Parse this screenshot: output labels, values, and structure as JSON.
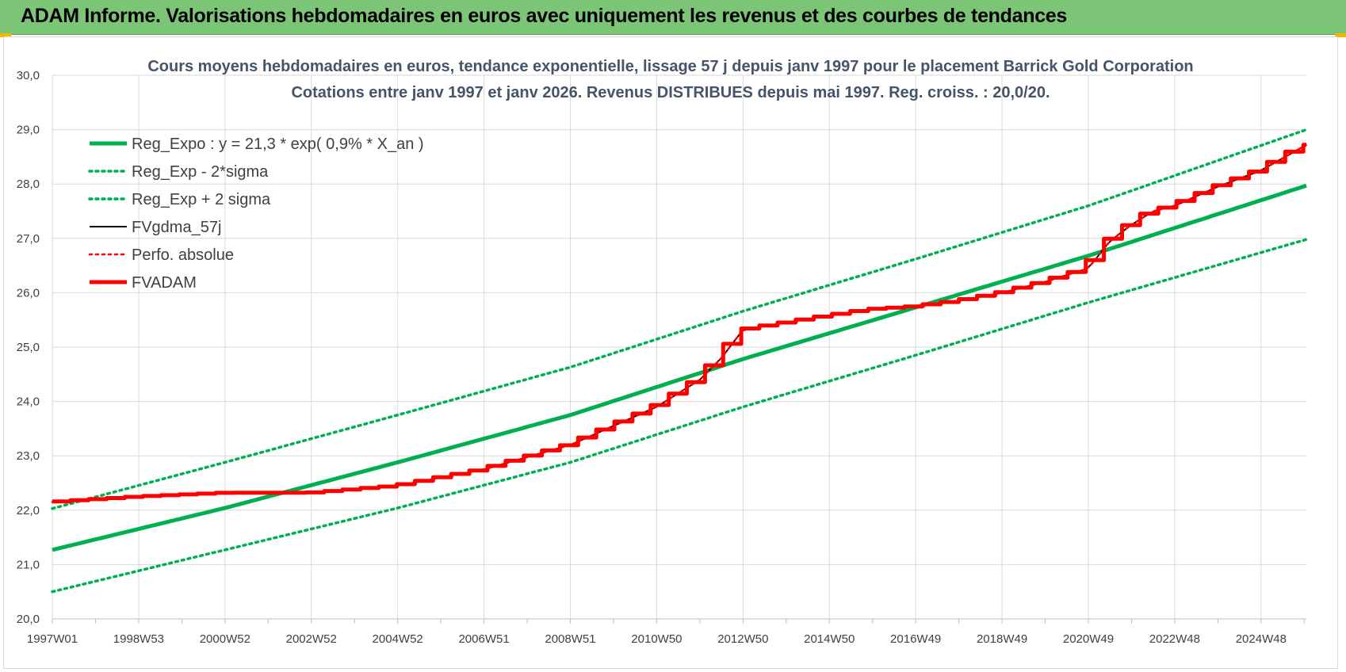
{
  "banner": {
    "title": "ADAM Informe. Valorisations hebdomadaires en euros avec uniquement les revenus et des courbes de tendances",
    "color": "#7cc576"
  },
  "chart_data": {
    "type": "line",
    "title_lines": [
      "Cours moyens hebdomadaires en euros, tendance exponentielle, lissage 57 j depuis janv 1997  pour le placement Barrick Gold Corporation",
      "Cotations entre janv 1997 et janv 2026. Revenus DISTRIBUES depuis mai 1997.  Reg. croiss. : 20,0/20."
    ],
    "xlabel": "",
    "ylabel": "",
    "ylim": [
      20,
      30
    ],
    "yticks": [
      "20,0",
      "21,0",
      "22,0",
      "23,0",
      "24,0",
      "25,0",
      "26,0",
      "27,0",
      "28,0",
      "29,0",
      "30,0"
    ],
    "xlim": [
      1997.0,
      2026.05
    ],
    "xtick_labels": [
      "1997W01",
      "1998W53",
      "2000W52",
      "2002W52",
      "2004W52",
      "2006W51",
      "2008W51",
      "2010W50",
      "2012W50",
      "2014W50",
      "2016W49",
      "2018W49",
      "2020W49",
      "2022W48",
      "2024W48"
    ],
    "xtick_years": [
      1997.0,
      1999.0,
      2001.0,
      2003.0,
      2005.0,
      2007.0,
      2009.0,
      2011.0,
      2013.0,
      2015.0,
      2017.0,
      2019.0,
      2021.0,
      2023.0,
      2025.0
    ],
    "grid": true,
    "legend_position": "top-left",
    "series": [
      {
        "name": "Reg_Expo : y = 21,3 * exp( 0,9% *  X_an )",
        "style": "solid",
        "color": "#00b050",
        "width": 5,
        "x": [
          1997.0,
          2001.0,
          2005.0,
          2009.0,
          2013.0,
          2017.0,
          2021.0,
          2026.05
        ],
        "y": [
          21.27,
          22.04,
          22.88,
          23.75,
          24.78,
          25.73,
          26.68,
          27.97
        ]
      },
      {
        "name": "Reg_Exp - 2*sigma",
        "style": "dotted",
        "color": "#00b050",
        "width": 3.5,
        "x": [
          1997.0,
          2001.0,
          2005.0,
          2009.0,
          2013.0,
          2017.0,
          2021.0,
          2026.05
        ],
        "y": [
          20.5,
          21.27,
          22.04,
          22.88,
          23.9,
          24.85,
          25.82,
          26.98
        ]
      },
      {
        "name": "Reg_Exp + 2 sigma",
        "style": "dotted",
        "color": "#00b050",
        "width": 3.5,
        "x": [
          1997.0,
          2001.0,
          2005.0,
          2009.0,
          2013.0,
          2017.0,
          2021.0,
          2026.05
        ],
        "y": [
          22.03,
          22.88,
          23.75,
          24.63,
          25.66,
          26.62,
          27.6,
          29.0
        ]
      },
      {
        "name": "FVgdma_57j",
        "style": "solid",
        "color": "#000000",
        "width": 2,
        "x": [
          1997.0,
          1999.0,
          2001.0,
          2003.0,
          2005.0,
          2007.0,
          2009.0,
          2011.0,
          2012.0,
          2012.5,
          2013.0,
          2014.0,
          2015.0,
          2016.0,
          2017.0,
          2018.0,
          2019.0,
          2020.0,
          2021.0,
          2021.5,
          2022.0,
          2022.5,
          2023.0,
          2024.0,
          2025.0,
          2026.05
        ],
        "y": [
          22.15,
          22.25,
          22.32,
          22.32,
          22.45,
          22.75,
          23.2,
          23.9,
          24.4,
          24.8,
          25.32,
          25.45,
          25.58,
          25.7,
          25.75,
          25.85,
          26.0,
          26.2,
          26.45,
          26.95,
          27.25,
          27.5,
          27.6,
          27.95,
          28.25,
          28.72
        ]
      },
      {
        "name": "Perfo. absolue",
        "style": "dotted",
        "color": "#ff0000",
        "width": 2.5,
        "x": [
          1997.0,
          1999.0,
          2001.0,
          2003.0,
          2005.0,
          2007.0,
          2009.0,
          2011.0,
          2012.0,
          2012.5,
          2013.0,
          2014.0,
          2015.0,
          2016.0,
          2017.0,
          2018.0,
          2019.0,
          2020.0,
          2021.0,
          2021.5,
          2022.0,
          2022.5,
          2023.0,
          2024.0,
          2025.0,
          2026.05
        ],
        "y": [
          22.15,
          22.25,
          22.32,
          22.32,
          22.45,
          22.75,
          23.2,
          23.9,
          24.4,
          24.8,
          25.32,
          25.45,
          25.58,
          25.7,
          25.75,
          25.85,
          26.0,
          26.2,
          26.45,
          26.95,
          27.25,
          27.5,
          27.6,
          27.95,
          28.25,
          28.72
        ]
      },
      {
        "name": "FVADAM",
        "style": "steps",
        "color": "#ff0000",
        "width": 5,
        "x": [
          1997.0,
          1999.0,
          2001.0,
          2003.0,
          2005.0,
          2007.0,
          2009.0,
          2011.0,
          2012.0,
          2012.5,
          2013.0,
          2014.0,
          2015.0,
          2016.0,
          2017.0,
          2018.0,
          2019.0,
          2020.0,
          2021.0,
          2021.5,
          2022.0,
          2022.5,
          2023.0,
          2024.0,
          2025.0,
          2026.05
        ],
        "y": [
          22.15,
          22.25,
          22.32,
          22.32,
          22.45,
          22.75,
          23.2,
          23.9,
          24.4,
          24.8,
          25.32,
          25.45,
          25.58,
          25.7,
          25.75,
          25.85,
          26.0,
          26.2,
          26.45,
          26.95,
          27.25,
          27.5,
          27.6,
          27.95,
          28.25,
          28.72
        ]
      }
    ]
  }
}
